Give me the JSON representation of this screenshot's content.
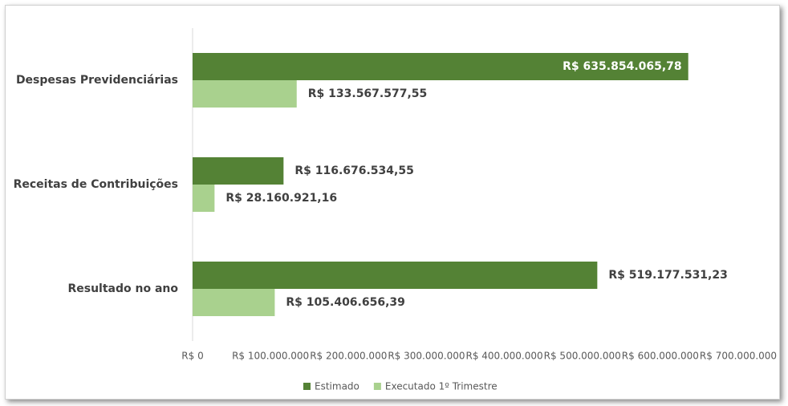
{
  "chart_data": {
    "type": "bar",
    "orientation": "horizontal",
    "categories": [
      "Despesas Previdenciárias",
      "Receitas de Contribuições",
      "Resultado no ano"
    ],
    "series": [
      {
        "name": "Estimado",
        "color": "#548235",
        "values": [
          635854065.78,
          116676534.55,
          519177531.23
        ],
        "value_labels": [
          "R$ 635.854.065,78",
          "R$ 116.676.534,55",
          "R$ 519.177.531,23"
        ]
      },
      {
        "name": "Executado 1º Trimestre",
        "color": "#a9d18e",
        "values": [
          133567577.55,
          28160921.16,
          105406656.39
        ],
        "value_labels": [
          "R$ 133.567.577,55",
          "R$ 28.160.921,16",
          "R$ 105.406.656,39"
        ]
      }
    ],
    "xlim": [
      0,
      700000000
    ],
    "xticks": [
      {
        "value": 0,
        "label": "R$ 0"
      },
      {
        "value": 100000000,
        "label": "R$ 100.000.000"
      },
      {
        "value": 200000000,
        "label": "R$ 200.000.000"
      },
      {
        "value": 300000000,
        "label": "R$ 300.000.000"
      },
      {
        "value": 400000000,
        "label": "R$ 400.000.000"
      },
      {
        "value": 500000000,
        "label": "R$ 500.000.000"
      },
      {
        "value": 600000000,
        "label": "R$ 600.000.000"
      },
      {
        "value": 700000000,
        "label": "R$ 700.000.000"
      }
    ],
    "legend": "bottom"
  }
}
